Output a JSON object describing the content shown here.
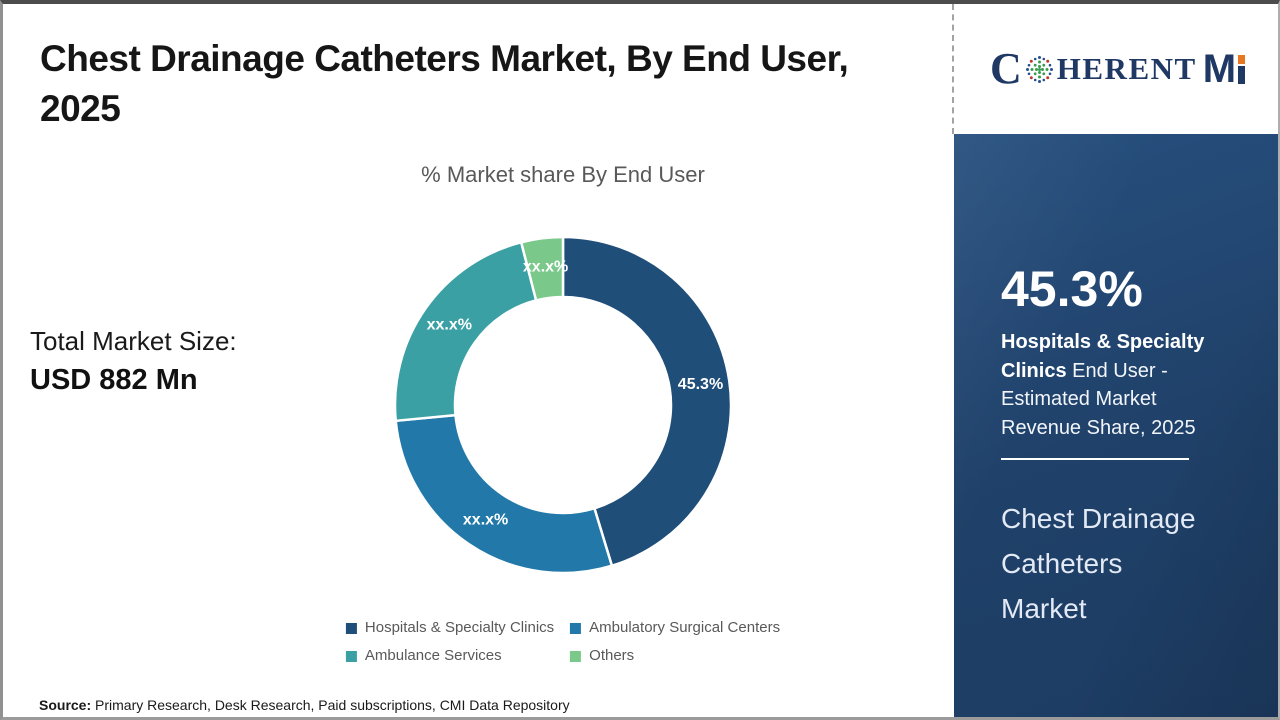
{
  "header": {
    "title_lines": [
      "Chest Drainage Catheters Market, By End User,",
      "2025"
    ]
  },
  "left_panel": {
    "total_label": "Total Market Size:",
    "total_value": "USD 882 Mn"
  },
  "chart_data": {
    "type": "donut",
    "title": "% Market share By End User",
    "legend_position": "bottom",
    "start_angle_deg": 0,
    "direction": "clockwise",
    "segments": [
      {
        "label": "Hospitals & Specialty Clinics",
        "display_value": "45.3%",
        "value": 45.3,
        "color": "#1F4E79"
      },
      {
        "label": "Ambulatory Surgical Centers",
        "display_value": "xx.x%",
        "value": 28.2,
        "color": "#2279A9"
      },
      {
        "label": "Ambulance Services",
        "display_value": "xx.x%",
        "value": 22.5,
        "color": "#3AA0A4"
      },
      {
        "label": "Others",
        "display_value": "xx.x%",
        "value": 4.0,
        "color": "#7AC98B"
      }
    ]
  },
  "sidebar": {
    "highlight_value": "45.3%",
    "highlight_bold": "Hospitals & Specialty Clinics",
    "highlight_rest": "End User - Estimated Market Revenue Share, 2025",
    "market_name_lines": [
      "Chest Drainage",
      "Catheters",
      "Market"
    ]
  },
  "brand": {
    "logo_text_c": "C",
    "logo_text_rest": "HERENT",
    "logo_text_m": "M",
    "globe_icon": "dotted-globe"
  },
  "footer": {
    "source_label": "Source:",
    "source_text": " Primary Research, Desk Research, Paid subscriptions, CMI Data Repository"
  },
  "theme": {
    "logo-navy": "#1F3864",
    "logo-orange": "#E87722",
    "sidebar-bg": "#1F4068"
  }
}
